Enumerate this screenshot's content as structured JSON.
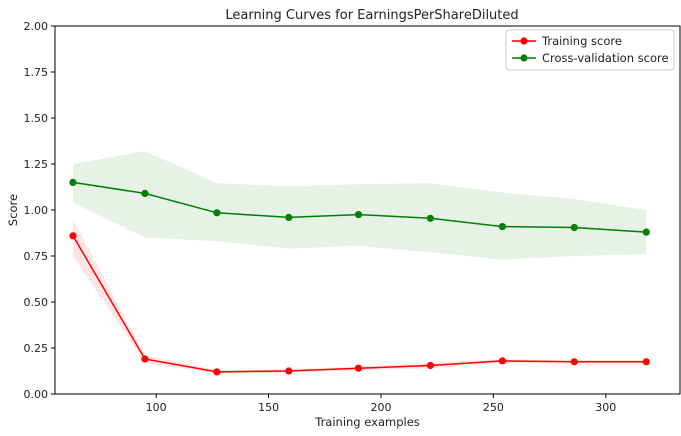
{
  "chart_data": {
    "type": "line",
    "title": "Learning Curves for EarningsPerShareDiluted",
    "xlabel": "Training examples",
    "ylabel": "Score",
    "xlim": [
      55,
      333
    ],
    "ylim": [
      0,
      2.0
    ],
    "xticks": [
      100,
      150,
      200,
      250,
      300
    ],
    "xtick_labels": [
      "100",
      "150",
      "200",
      "250",
      "300"
    ],
    "yticks": [
      0,
      0.25,
      0.5,
      0.75,
      1.0,
      1.25,
      1.5,
      1.75,
      2.0
    ],
    "ytick_labels": [
      "0.00",
      "0.25",
      "0.50",
      "0.75",
      "1.00",
      "1.25",
      "1.50",
      "1.75",
      "2.00"
    ],
    "grid": false,
    "legend_position": "top-right",
    "x": [
      63,
      95,
      127,
      159,
      190,
      222,
      254,
      286,
      318
    ],
    "series": [
      {
        "name": "Training score",
        "color": "#ff0000",
        "band_color": "#ff0000",
        "values": [
          0.86,
          0.19,
          0.12,
          0.125,
          0.14,
          0.155,
          0.18,
          0.175,
          0.175
        ],
        "upper": [
          0.95,
          0.21,
          0.13,
          0.135,
          0.15,
          0.17,
          0.19,
          0.185,
          0.185
        ],
        "lower": [
          0.75,
          0.17,
          0.11,
          0.115,
          0.13,
          0.14,
          0.17,
          0.165,
          0.165
        ]
      },
      {
        "name": "Cross-validation score",
        "color": "#008000",
        "band_color": "#008000",
        "values": [
          1.15,
          1.09,
          0.985,
          0.96,
          0.975,
          0.955,
          0.91,
          0.905,
          0.88
        ],
        "upper": [
          1.25,
          1.32,
          1.145,
          1.13,
          1.14,
          1.145,
          1.095,
          1.06,
          1.0
        ],
        "lower": [
          1.04,
          0.85,
          0.83,
          0.79,
          0.805,
          0.77,
          0.73,
          0.75,
          0.76
        ]
      }
    ]
  }
}
